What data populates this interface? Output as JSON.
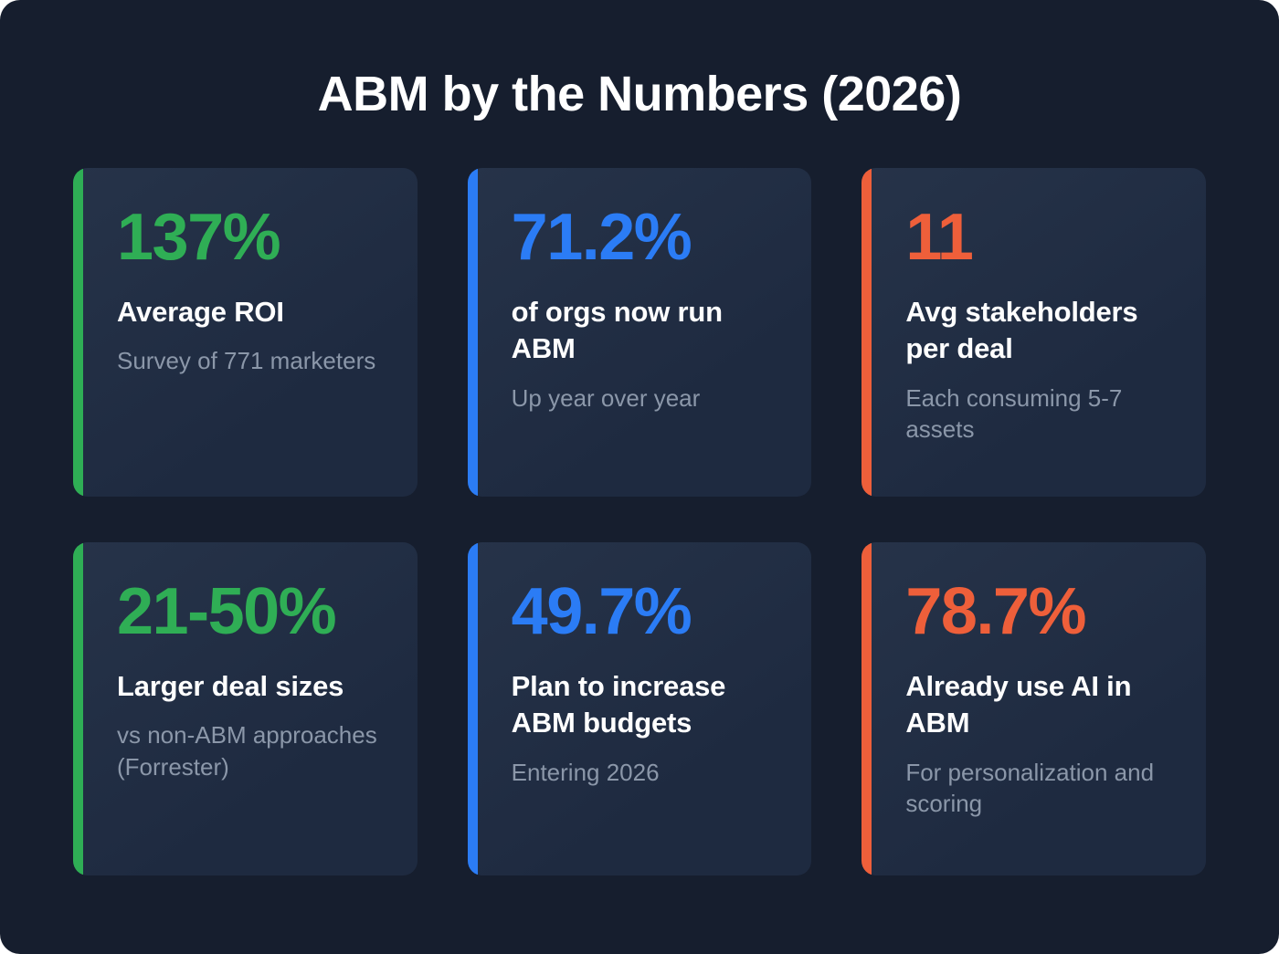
{
  "title": "ABM by the Numbers (2026)",
  "colors": {
    "background": "#161e2e",
    "card_background": "#222e44",
    "green": "#2fae55",
    "blue": "#2b7cf5",
    "orange": "#ee5f3a",
    "heading_text": "#ffffff",
    "note_text": "#8b97a9"
  },
  "cards": [
    {
      "value": "137%",
      "label": "Average ROI",
      "note": "Survey of 771 marketers",
      "accent": "#2fae55"
    },
    {
      "value": "71.2%",
      "label": "of orgs now run ABM",
      "note": "Up year over year",
      "accent": "#2b7cf5"
    },
    {
      "value": "11",
      "label": "Avg stakeholders per deal",
      "note": "Each consuming 5-7 assets",
      "accent": "#ee5f3a"
    },
    {
      "value": "21-50%",
      "label": "Larger deal sizes",
      "note": "vs non-ABM approaches (Forrester)",
      "accent": "#2fae55"
    },
    {
      "value": "49.7%",
      "label": "Plan to increase ABM budgets",
      "note": "Entering 2026",
      "accent": "#2b7cf5"
    },
    {
      "value": "78.7%",
      "label": "Already use AI in ABM",
      "note": "For personalization and scoring",
      "accent": "#ee5f3a"
    }
  ],
  "chart_data": {
    "type": "table",
    "title": "ABM by the Numbers (2026)",
    "columns": [
      "value",
      "label",
      "note"
    ],
    "rows": [
      [
        "137%",
        "Average ROI",
        "Survey of 771 marketers"
      ],
      [
        "71.2%",
        "of orgs now run ABM",
        "Up year over year"
      ],
      [
        "11",
        "Avg stakeholders per deal",
        "Each consuming 5-7 assets"
      ],
      [
        "21-50%",
        "Larger deal sizes",
        "vs non-ABM approaches (Forrester)"
      ],
      [
        "49.7%",
        "Plan to increase ABM budgets",
        "Entering 2026"
      ],
      [
        "78.7%",
        "Already use AI in ABM",
        "For personalization and scoring"
      ]
    ]
  }
}
